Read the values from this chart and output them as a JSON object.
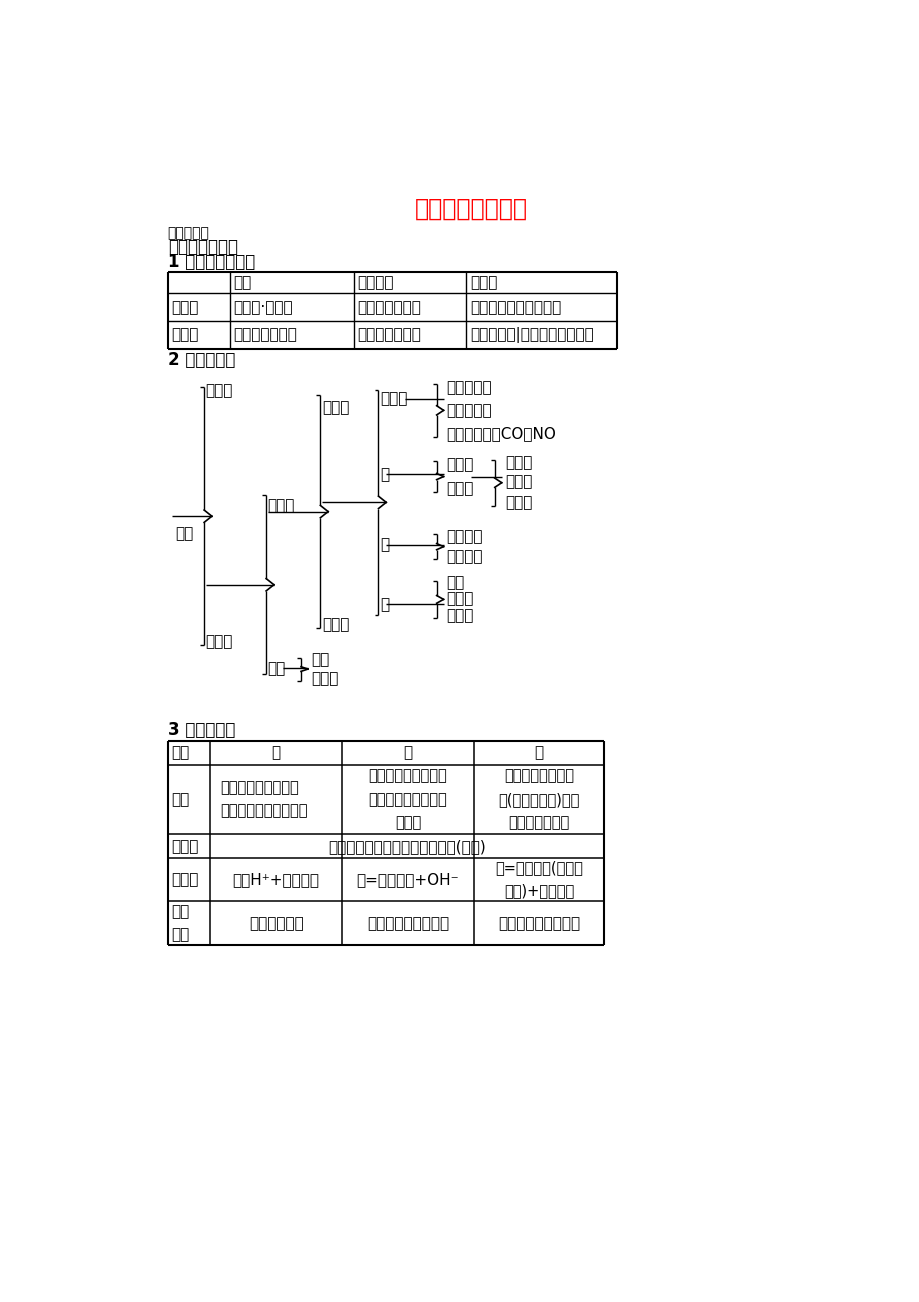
{
  "title": "物质的分类和变化",
  "title_color": "#FF0000",
  "bg_color": "#FFFFFF",
  "subtitle": "点击重难点",
  "section1": "一、物质的分类",
  "sub1": "1 纯净物和混合物",
  "sub2": "2 物质的分类",
  "sub3": "3 酸，碱，盐",
  "t1_headers": [
    "",
    "组成",
    "分子构成",
    "稳定性"
  ],
  "t1_r1": [
    "纯净物",
    "只含有·种物质",
    "由同种分子构成",
    "具有固定的组成和性质"
  ],
  "t1_r2": [
    "混合物",
    "由多种物质组成",
    "由多种分子构成",
    "各成分保持|原有的结构和性质"
  ],
  "t2_headers": [
    "项目",
    "酸",
    "碱",
    "盐"
  ],
  "t2_r1_0": "概念",
  "t2_r1_1": "电离时生成的阳离子\n全部是氢离子的化合物",
  "t2_r1_2": "电离时生成的阴离子\n全部是氢氧根离子的\n化合物",
  "t2_r1_3": "电离时生成金属离\n子(或铵根离子)和酸\n根离子的化合物",
  "t2_r2_0": "相同点",
  "t2_r2_1": "均为化合物，其水溶液都能导电(电离)",
  "t2_r3_0": "不同点",
  "t2_r3_1": "酸：H⁺+酸根离子",
  "t2_r3_2": "碱=金属离子+OH⁻",
  "t2_r3_3": "盐=金属离子(或铵根\n离子)+酸根离子",
  "t2_r4_0": "组成\n特点",
  "t2_r4_1": "一定含氧元素",
  "t2_r4_2": "定含氢、氧两种元素",
  "t2_r4_3": "一定含有非金属元素"
}
